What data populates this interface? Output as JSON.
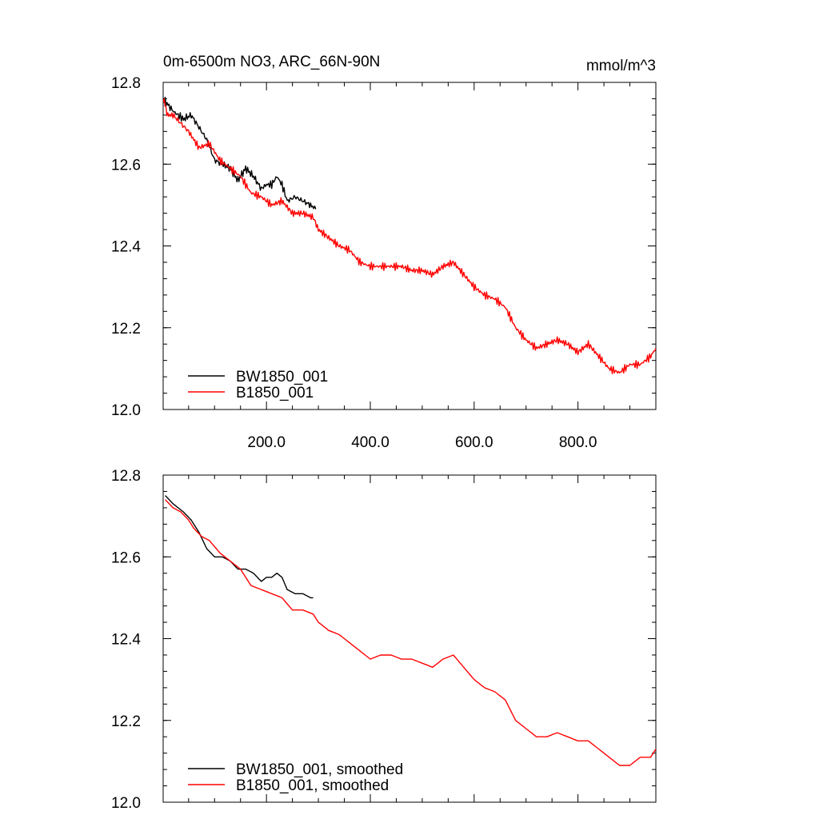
{
  "chart_data": [
    {
      "type": "line",
      "title_left": "0m-6500m NO3, ARC_66N-90N",
      "title_right": "mmol/m^3",
      "xlabel": "",
      "ylabel": "",
      "xlim": [
        1,
        950
      ],
      "ylim": [
        12.0,
        12.8
      ],
      "x_ticks": [
        200,
        400,
        600,
        800
      ],
      "x_tick_labels": [
        "200.0",
        "400.0",
        "600.0",
        "800.0"
      ],
      "y_ticks": [
        12.0,
        12.2,
        12.4,
        12.6,
        12.8
      ],
      "y_tick_labels": [
        "12.0",
        "12.2",
        "12.4",
        "12.6",
        "12.8"
      ],
      "legend_position": "bottom-left",
      "series": [
        {
          "name": "BW1850_001",
          "color": "#000000",
          "x": [
            1,
            20,
            40,
            55,
            70,
            85,
            100,
            115,
            130,
            145,
            160,
            175,
            190,
            200,
            210,
            220,
            230,
            240,
            255,
            270,
            285,
            295
          ],
          "y": [
            12.76,
            12.73,
            12.71,
            12.72,
            12.69,
            12.66,
            12.61,
            12.6,
            12.59,
            12.56,
            12.59,
            12.57,
            12.54,
            12.55,
            12.55,
            12.57,
            12.55,
            12.51,
            12.52,
            12.51,
            12.5,
            12.49
          ]
        },
        {
          "name": "B1850_001",
          "color": "#ff0000",
          "x": [
            1,
            10,
            20,
            35,
            50,
            70,
            90,
            110,
            130,
            150,
            170,
            190,
            210,
            230,
            250,
            270,
            290,
            300,
            320,
            340,
            360,
            380,
            400,
            420,
            440,
            460,
            480,
            500,
            520,
            540,
            560,
            580,
            600,
            620,
            640,
            660,
            680,
            700,
            720,
            740,
            760,
            780,
            800,
            820,
            840,
            860,
            880,
            900,
            920,
            940,
            950
          ],
          "y": [
            12.76,
            12.72,
            12.72,
            12.7,
            12.68,
            12.64,
            12.65,
            12.61,
            12.59,
            12.57,
            12.53,
            12.52,
            12.5,
            12.51,
            12.48,
            12.48,
            12.47,
            12.44,
            12.42,
            12.4,
            12.39,
            12.36,
            12.35,
            12.35,
            12.35,
            12.35,
            12.34,
            12.34,
            12.33,
            12.35,
            12.36,
            12.33,
            12.3,
            12.28,
            12.27,
            12.25,
            12.2,
            12.17,
            12.15,
            12.16,
            12.17,
            12.16,
            12.14,
            12.16,
            12.13,
            12.1,
            12.09,
            12.11,
            12.11,
            12.13,
            12.15
          ]
        }
      ]
    },
    {
      "type": "line",
      "title_left": "",
      "title_right": "",
      "xlabel": "",
      "ylabel": "",
      "xlim": [
        1,
        950
      ],
      "ylim": [
        12.0,
        12.8
      ],
      "x_ticks": [
        200,
        400,
        600,
        800
      ],
      "x_tick_labels": [],
      "y_ticks": [
        12.0,
        12.2,
        12.4,
        12.6,
        12.8
      ],
      "y_tick_labels": [
        "12.0",
        "12.2",
        "12.4",
        "12.6",
        "12.8"
      ],
      "legend_position": "bottom-left",
      "series": [
        {
          "name": "BW1850_001, smoothed",
          "color": "#000000",
          "x": [
            5,
            20,
            40,
            55,
            70,
            85,
            100,
            115,
            130,
            145,
            160,
            175,
            190,
            200,
            210,
            220,
            230,
            240,
            255,
            270,
            285,
            290
          ],
          "y": [
            12.75,
            12.73,
            12.71,
            12.69,
            12.66,
            12.62,
            12.6,
            12.6,
            12.59,
            12.57,
            12.57,
            12.56,
            12.54,
            12.55,
            12.55,
            12.56,
            12.55,
            12.52,
            12.51,
            12.51,
            12.5,
            12.5
          ]
        },
        {
          "name": "B1850_001, smoothed",
          "color": "#ff0000",
          "x": [
            5,
            20,
            35,
            50,
            60,
            75,
            90,
            110,
            130,
            150,
            170,
            190,
            210,
            230,
            250,
            270,
            290,
            300,
            320,
            340,
            360,
            380,
            400,
            420,
            440,
            460,
            480,
            500,
            520,
            540,
            560,
            580,
            600,
            620,
            640,
            660,
            680,
            700,
            720,
            740,
            760,
            780,
            800,
            820,
            840,
            860,
            880,
            900,
            920,
            940,
            950
          ],
          "y": [
            12.74,
            12.72,
            12.71,
            12.69,
            12.67,
            12.65,
            12.64,
            12.61,
            12.59,
            12.57,
            12.53,
            12.52,
            12.51,
            12.5,
            12.47,
            12.47,
            12.46,
            12.44,
            12.42,
            12.41,
            12.39,
            12.37,
            12.35,
            12.36,
            12.36,
            12.35,
            12.35,
            12.34,
            12.33,
            12.35,
            12.36,
            12.33,
            12.3,
            12.28,
            12.27,
            12.25,
            12.2,
            12.18,
            12.16,
            12.16,
            12.17,
            12.16,
            12.15,
            12.15,
            12.13,
            12.11,
            12.09,
            12.09,
            12.11,
            12.11,
            12.13
          ]
        }
      ]
    }
  ]
}
